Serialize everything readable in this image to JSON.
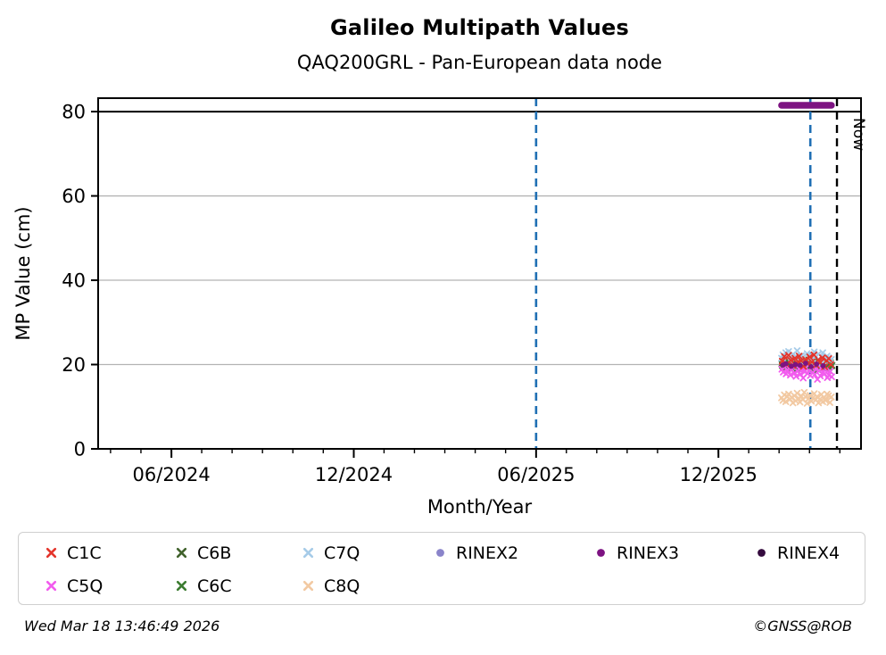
{
  "header": {
    "title": "Galileo Multipath Values",
    "subtitle": "QAQ200GRL - Pan-European data node"
  },
  "footer": {
    "timestamp": "Wed Mar 18 13:46:49 2026",
    "credit": "©GNSS@ROB"
  },
  "colors": {
    "axis": "#000000",
    "grid": "#b3b3b3",
    "event_line_blue": "#1f6fb4",
    "now_line_black": "#000000",
    "legend_border": "#cfcfcf",
    "background": "#ffffff"
  },
  "chart_data": {
    "type": "scatter",
    "title": "Galileo Multipath Values",
    "subtitle": "QAQ200GRL - Pan-European data node",
    "xlabel": "Month/Year",
    "ylabel": "MP Value (cm)",
    "xlim": [
      2024.216,
      2026.308
    ],
    "ylim": [
      0,
      83.19
    ],
    "grid": "horizontal-only",
    "y_ticks": [
      0,
      20,
      40,
      60,
      80
    ],
    "grid_y_values": [
      20,
      40,
      60
    ],
    "separator_line_y": 80,
    "x_major_ticks": [
      {
        "x": 2024.417,
        "label": "06/2024"
      },
      {
        "x": 2024.917,
        "label": "12/2024"
      },
      {
        "x": 2025.417,
        "label": "06/2025"
      },
      {
        "x": 2025.917,
        "label": "12/2025"
      }
    ],
    "x_minor_tick_interval_years": 0.0833333,
    "event_lines": [
      {
        "x": 2025.417,
        "color": "#1f6fb4",
        "style": "dashed"
      },
      {
        "x": 2026.169,
        "color": "#1f6fb4",
        "style": "dashed"
      }
    ],
    "now_line": {
      "x": 2026.242,
      "label": "Now",
      "color": "#000000",
      "style": "dashed"
    },
    "rinex3_version_segment": {
      "x1": 2026.09,
      "x2": 2026.227,
      "y": 81.5,
      "color": "#7d1382"
    },
    "legend_order": [
      "C1C",
      "C6B",
      "C7Q",
      "RINEX2",
      "RINEX3",
      "RINEX4",
      "C5Q",
      "C6C",
      "C8Q"
    ],
    "legend_position": "bottom",
    "series": [
      {
        "name": "C8Q",
        "marker": "x",
        "color": "#f2c9a2",
        "x_start": 2026.09,
        "x_step": 0.0039,
        "values": [
          12.1,
          11.5,
          12.8,
          11.2,
          12.4,
          13.0,
          11.8,
          12.2,
          10.9,
          12.6,
          11.4,
          13.2,
          12.0,
          11.1,
          12.5,
          11.7,
          13.4,
          12.3,
          10.8,
          11.9,
          12.7,
          11.3,
          12.1,
          13.1,
          11.6,
          12.4,
          10.9,
          11.8,
          12.9,
          11.2,
          12.2,
          11.5,
          13.0,
          12.6,
          11.0,
          12.3
        ]
      },
      {
        "name": "C6B",
        "marker": "x",
        "color": "#40622c",
        "x_start": 2026.0905,
        "x_step": 0.0039,
        "values": [
          20.2,
          19.6,
          20.8,
          19.3,
          20.5,
          21.0,
          19.8,
          20.1,
          19.4,
          20.9,
          20.3,
          19.1,
          20.6,
          21.2,
          19.7,
          20.0,
          19.5,
          20.7,
          19.9,
          21.1,
          20.4,
          19.2,
          20.8,
          19.6,
          20.2,
          20.9,
          19.4,
          20.5,
          19.8,
          21.0,
          20.1,
          19.3,
          20.6,
          19.9,
          20.3,
          19.7
        ]
      },
      {
        "name": "C6C",
        "marker": "x",
        "color": "#3c7c31",
        "x_start": 2026.092,
        "x_step": 0.0039,
        "values": [
          19.8,
          20.5,
          19.2,
          20.9,
          19.5,
          20.2,
          18.9,
          20.7,
          19.9,
          19.3,
          20.4,
          20.0,
          19.6,
          20.8,
          19.1,
          20.3,
          19.7,
          21.0,
          19.4,
          20.6,
          19.0,
          20.1,
          19.8,
          20.9,
          19.5,
          18.8,
          20.2,
          19.9,
          20.5,
          19.2,
          20.7,
          19.6,
          20.0,
          19.3,
          20.4,
          19.8
        ]
      },
      {
        "name": "C5Q",
        "marker": "x",
        "color": "#f25cee",
        "x_start": 2026.091,
        "x_step": 0.0039,
        "values": [
          18.9,
          18.2,
          19.4,
          17.8,
          18.6,
          19.1,
          17.5,
          18.8,
          19.6,
          18.0,
          17.2,
          18.4,
          19.0,
          17.7,
          18.7,
          16.8,
          18.3,
          19.2,
          17.9,
          18.5,
          17.4,
          19.3,
          18.1,
          17.6,
          18.9,
          16.5,
          18.6,
          17.3,
          19.0,
          18.2,
          17.8,
          18.8,
          16.9,
          17.5,
          18.4,
          17.1
        ]
      },
      {
        "name": "C7Q",
        "marker": "x",
        "color": "#a6cbe8",
        "x_start": 2026.09,
        "x_step": 0.0039,
        "values": [
          21.5,
          22.3,
          21.0,
          22.8,
          21.8,
          23.1,
          20.9,
          21.6,
          22.4,
          21.2,
          22.0,
          23.3,
          21.4,
          20.6,
          22.1,
          21.8,
          20.4,
          21.1,
          22.6,
          21.9,
          20.8,
          22.2,
          21.3,
          23.0,
          21.7,
          20.5,
          22.5,
          21.0,
          21.9,
          22.8,
          20.7,
          21.4,
          22.0,
          21.6,
          20.9,
          21.2
        ]
      },
      {
        "name": "C1C",
        "marker": "x",
        "color": "#e4342b",
        "x_start": 2026.092,
        "x_step": 0.0058,
        "values": [
          20.8,
          21.9,
          20.1,
          22.2,
          21.0,
          19.8,
          21.5,
          20.4,
          22.0,
          20.9,
          19.6,
          21.2,
          20.2,
          21.8,
          20.6,
          22.3,
          19.9,
          21.1,
          20.5,
          21.6,
          19.5,
          20.9,
          21.4,
          20.0
        ]
      },
      {
        "name": "RINEX2",
        "marker": "circle",
        "color": "#8a84ca",
        "points": []
      },
      {
        "name": "RINEX3",
        "marker": "circle",
        "color": "#7d1382",
        "points": [
          [
            2026.094,
            19.9
          ],
          [
            2026.102,
            20.2
          ],
          [
            2026.117,
            19.6
          ],
          [
            2026.128,
            20.0
          ],
          [
            2026.141,
            19.8
          ],
          [
            2026.156,
            20.3
          ],
          [
            2026.171,
            19.5
          ],
          [
            2026.186,
            20.1
          ],
          [
            2026.204,
            19.7
          ]
        ]
      },
      {
        "name": "RINEX4",
        "marker": "circle",
        "color": "#350b3e",
        "points": []
      }
    ]
  }
}
